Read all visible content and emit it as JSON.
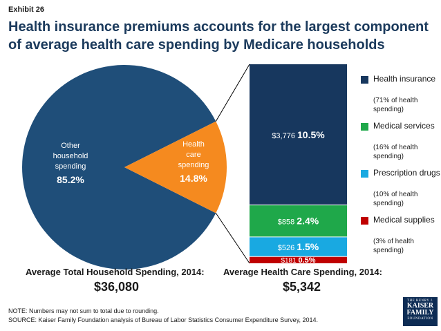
{
  "exhibit": "Exhibit 26",
  "title": "Health insurance premiums accounts for the largest component of average health care spending by Medicare households",
  "chart_data": [
    {
      "type": "pie",
      "slices": [
        {
          "label_lines": [
            "Other",
            "household",
            "spending"
          ],
          "value": 85.2,
          "value_label": "85.2%",
          "color": "#1f4e79"
        },
        {
          "label_lines": [
            "Health",
            "care",
            "spending"
          ],
          "value": 14.8,
          "value_label": "14.8%",
          "color": "#f58a1f"
        }
      ],
      "caption": "Average Total Household Spending, 2014:",
      "total": "$36,080"
    },
    {
      "type": "bar",
      "stacked": true,
      "segments": [
        {
          "name": "Health insurance",
          "amount": 3776,
          "amount_label": "$3,776",
          "pct_label": "10.5%",
          "color": "#17375e"
        },
        {
          "name": "Medical services",
          "amount": 858,
          "amount_label": "$858",
          "pct_label": "2.4%",
          "color": "#1fa84a"
        },
        {
          "name": "Prescription drugs",
          "amount": 526,
          "amount_label": "$526",
          "pct_label": "1.5%",
          "color": "#19a9e1"
        },
        {
          "name": "Medical supplies",
          "amount": 181,
          "amount_label": "$181",
          "pct_label": "0.5%",
          "color": "#c00000"
        }
      ],
      "caption": "Average Health Care Spending, 2014:",
      "total": "$5,342"
    }
  ],
  "legend": [
    {
      "name": "Health insurance",
      "sub": "(71% of health spending)",
      "color": "#17375e"
    },
    {
      "name": "Medical services",
      "sub": "(16% of health spending)",
      "color": "#1fa84a"
    },
    {
      "name": "Prescription drugs",
      "sub": "(10% of health spending)",
      "color": "#19a9e1"
    },
    {
      "name": "Medical supplies",
      "sub": "(3% of health spending)",
      "color": "#c00000"
    }
  ],
  "note": "NOTE: Numbers may not sum to total due to rounding.",
  "source": "SOURCE: Kaiser Family Foundation analysis of Bureau of Labor Statistics Consumer Expenditure Survey, 2014.",
  "logo": {
    "line1": "THE HENRY J.",
    "line2": "KAISER",
    "line3": "FAMILY",
    "line4": "FOUNDATION"
  }
}
